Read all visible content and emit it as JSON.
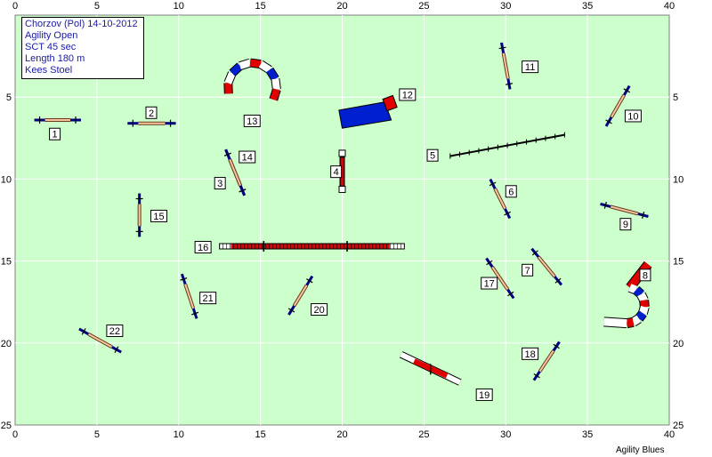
{
  "info": {
    "line1": "Chorzov (Pol) 14-10-2012",
    "line2": "Agility Open",
    "line3": "SCT 45 sec",
    "line4": "Length 180 m",
    "line5": "Kees Stoel"
  },
  "credit": "Agility Blues",
  "axes": {
    "x_ticks": [
      "0",
      "5",
      "10",
      "15",
      "20",
      "25",
      "30",
      "35",
      "40"
    ],
    "y_ticks": [
      "0",
      "5",
      "10",
      "15",
      "20",
      "25"
    ]
  },
  "colors": {
    "field": "#ccffcc",
    "grid": "#ffffff",
    "jump_bar": "#f5c6a0",
    "wing": "#000080",
    "red": "#e00000",
    "blue": "#0020d0",
    "white": "#ffffff"
  },
  "obstacles": [
    {
      "num": "1",
      "type": "jump"
    },
    {
      "num": "2",
      "type": "jump"
    },
    {
      "num": "3",
      "type": "jump"
    },
    {
      "num": "4",
      "type": "tire"
    },
    {
      "num": "5",
      "type": "weave-poles"
    },
    {
      "num": "6",
      "type": "jump"
    },
    {
      "num": "7",
      "type": "jump"
    },
    {
      "num": "8",
      "type": "tunnel"
    },
    {
      "num": "9",
      "type": "jump"
    },
    {
      "num": "10",
      "type": "jump"
    },
    {
      "num": "11",
      "type": "jump"
    },
    {
      "num": "12",
      "type": "chute"
    },
    {
      "num": "13",
      "type": "tunnel"
    },
    {
      "num": "14",
      "type": "jump"
    },
    {
      "num": "15",
      "type": "jump"
    },
    {
      "num": "16",
      "type": "dog-walk"
    },
    {
      "num": "17",
      "type": "jump"
    },
    {
      "num": "18",
      "type": "jump"
    },
    {
      "num": "19",
      "type": "seesaw"
    },
    {
      "num": "20",
      "type": "jump"
    },
    {
      "num": "21",
      "type": "jump"
    },
    {
      "num": "22",
      "type": "jump"
    }
  ]
}
